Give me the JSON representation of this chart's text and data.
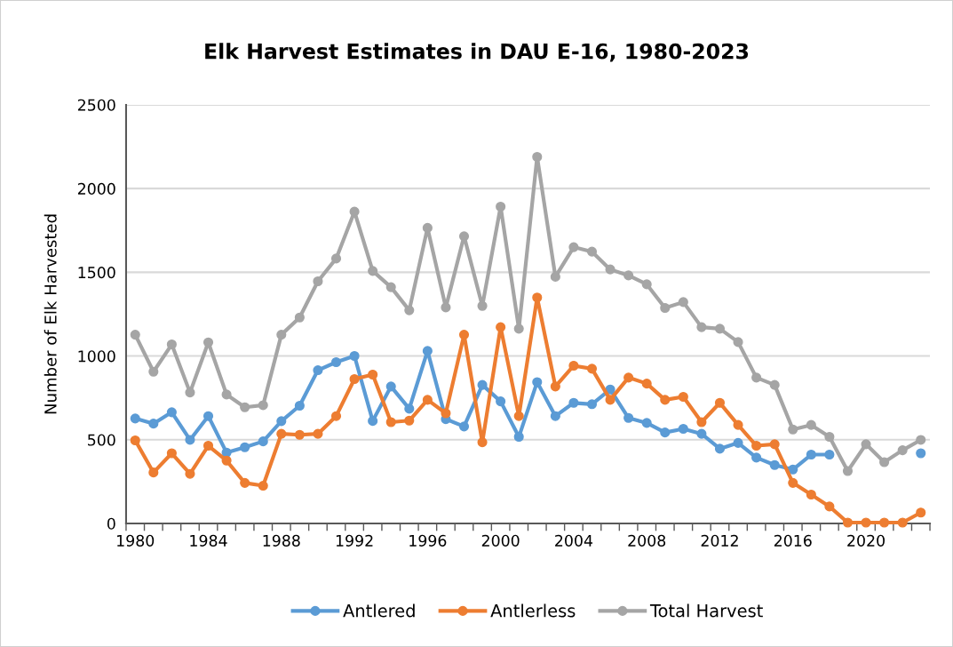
{
  "chart_data": {
    "type": "line",
    "title": "Elk Harvest Estimates in DAU E-16, 1980-2023",
    "ylabel": "Number of Elk Harvested",
    "categories": [
      "1980",
      null,
      null,
      null,
      "1984",
      null,
      null,
      null,
      "1988",
      null,
      null,
      null,
      "1992",
      null,
      null,
      null,
      "1996",
      null,
      null,
      null,
      "2000",
      null,
      null,
      null,
      "2004",
      null,
      null,
      null,
      "2008",
      null,
      null,
      null,
      "2012",
      null,
      null,
      null,
      "2016",
      null,
      null,
      null,
      "2020",
      null,
      null,
      null
    ],
    "ylim": [
      0,
      2500
    ],
    "yticks": [
      0,
      500,
      1000,
      1500,
      2000,
      2500
    ],
    "grid": "y",
    "legend": "bottom",
    "marker": "circle",
    "line_style": "solid",
    "series": [
      {
        "name": "Antlered",
        "color": "#5b9bd5",
        "values": [
          627,
          596,
          664,
          499,
          641,
          423,
          455,
          490,
          611,
          703,
          915,
          963,
          1000,
          612,
          818,
          685,
          1030,
          623,
          579,
          827,
          729,
          517,
          844,
          641,
          720,
          712,
          800,
          630,
          600,
          543,
          565,
          535,
          446,
          481,
          393,
          349,
          322,
          411,
          411,
          null,
          null,
          null,
          null,
          419
        ]
      },
      {
        "name": "Antlerless",
        "color": "#ed7d31",
        "values": [
          496,
          304,
          419,
          296,
          464,
          375,
          242,
          225,
          535,
          529,
          535,
          641,
          862,
          889,
          605,
          614,
          738,
          658,
          1127,
          485,
          1172,
          641,
          1349,
          818,
          942,
          924,
          738,
          871,
          835,
          738,
          756,
          605,
          720,
          588,
          464,
          473,
          242,
          172,
          101,
          5,
          5,
          5,
          5,
          65
        ]
      },
      {
        "name": "Total Harvest",
        "color": "#a5a5a5",
        "values": [
          1127,
          906,
          1069,
          782,
          1081,
          770,
          694,
          706,
          1127,
          1230,
          1446,
          1582,
          1862,
          1508,
          1411,
          1273,
          1765,
          1290,
          1715,
          1299,
          1892,
          1163,
          2189,
          1473,
          1650,
          1623,
          1517,
          1481,
          1428,
          1287,
          1322,
          1172,
          1163,
          1083,
          871,
          827,
          561,
          588,
          517,
          313,
          473,
          366,
          437,
          499
        ]
      }
    ]
  }
}
